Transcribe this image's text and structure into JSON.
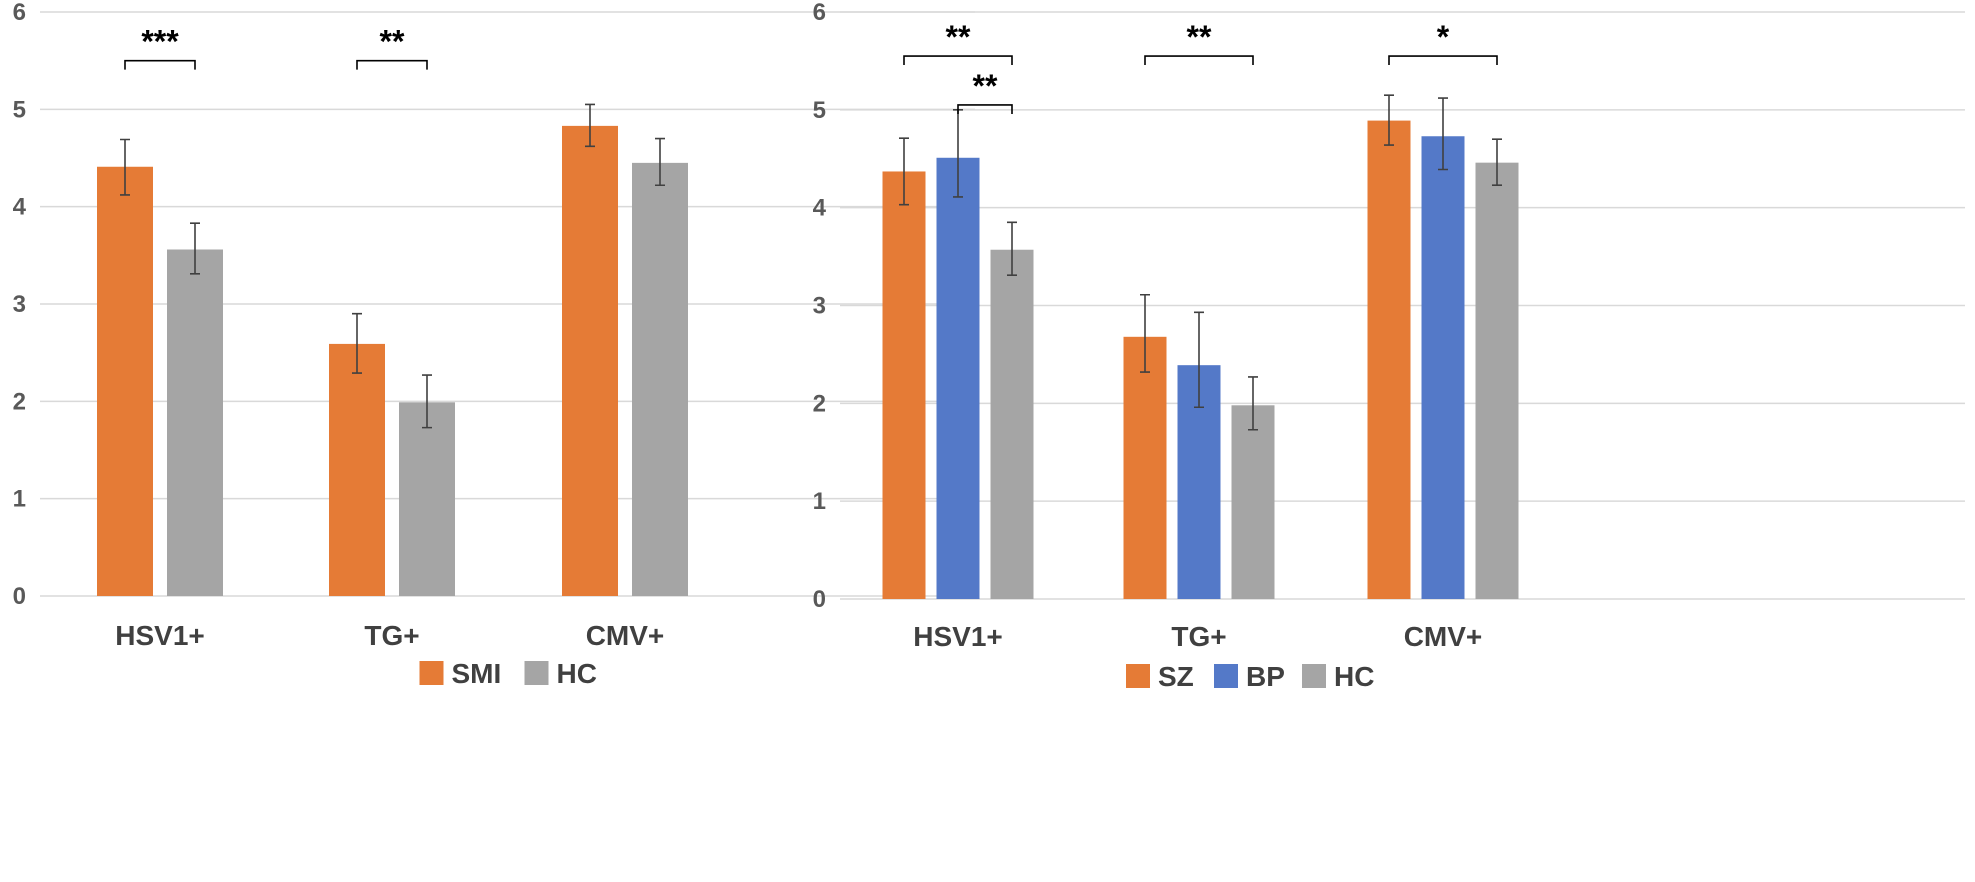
{
  "colors": {
    "orange": "#E57B36",
    "blue": "#5479C8",
    "gray": "#A5A5A5"
  },
  "chart_data": [
    {
      "type": "bar",
      "title": "",
      "xlabel": "",
      "ylabel": "",
      "ylim": [
        0,
        6
      ],
      "yticks": [
        "0",
        "1",
        "2",
        "3",
        "4",
        "5",
        "6"
      ],
      "categories": [
        "HSV1+",
        "TG+",
        "CMV+"
      ],
      "series": [
        {
          "name": "SMI",
          "color": "#E57B36",
          "values": [
            4.41,
            2.59,
            4.83
          ],
          "err_low": [
            4.12,
            2.29,
            4.62
          ],
          "err_high": [
            4.69,
            2.9,
            5.05
          ]
        },
        {
          "name": "HC",
          "color": "#A5A5A5",
          "values": [
            3.56,
            1.99,
            4.45
          ],
          "err_low": [
            3.31,
            1.73,
            4.22
          ],
          "err_high": [
            3.83,
            2.27,
            4.7
          ]
        }
      ],
      "significance": [
        {
          "category": 0,
          "from_series": 0,
          "to_series": 1,
          "level": 5.5,
          "label": "***"
        },
        {
          "category": 1,
          "from_series": 0,
          "to_series": 1,
          "level": 5.5,
          "label": "**"
        }
      ],
      "legend": [
        "SMI",
        "HC"
      ],
      "legend_position": "bottom"
    },
    {
      "type": "bar",
      "title": "",
      "xlabel": "",
      "ylabel": "",
      "ylim": [
        0,
        6
      ],
      "yticks": [
        "0",
        "1",
        "2",
        "3",
        "4",
        "5",
        "6"
      ],
      "categories": [
        "HSV1+",
        "TG+",
        "CMV+"
      ],
      "series": [
        {
          "name": "SZ",
          "color": "#E57B36",
          "values": [
            4.37,
            2.68,
            4.89
          ],
          "err_low": [
            4.03,
            2.32,
            4.64
          ],
          "err_high": [
            4.71,
            3.11,
            5.15
          ]
        },
        {
          "name": "BP",
          "color": "#5479C8",
          "values": [
            4.51,
            2.39,
            4.73
          ],
          "err_low": [
            4.11,
            1.96,
            4.39
          ],
          "err_high": [
            5.0,
            2.93,
            5.12
          ]
        },
        {
          "name": "HC",
          "color": "#A5A5A5",
          "values": [
            3.57,
            1.98,
            4.46
          ],
          "err_low": [
            3.31,
            1.73,
            4.23
          ],
          "err_high": [
            3.85,
            2.27,
            4.7
          ]
        }
      ],
      "significance": [
        {
          "category": 0,
          "from_series": 0,
          "to_series": 2,
          "level": 5.55,
          "label": "**"
        },
        {
          "category": 0,
          "from_series": 1,
          "to_series": 2,
          "level": 5.05,
          "label": "**"
        },
        {
          "category": 1,
          "from_series": 0,
          "to_series": 2,
          "level": 5.55,
          "label": "**"
        },
        {
          "category": 2,
          "from_series": 0,
          "to_series": 2,
          "level": 5.55,
          "label": "*"
        }
      ],
      "legend": [
        "SZ",
        "BP",
        "HC"
      ],
      "legend_position": "bottom"
    }
  ]
}
